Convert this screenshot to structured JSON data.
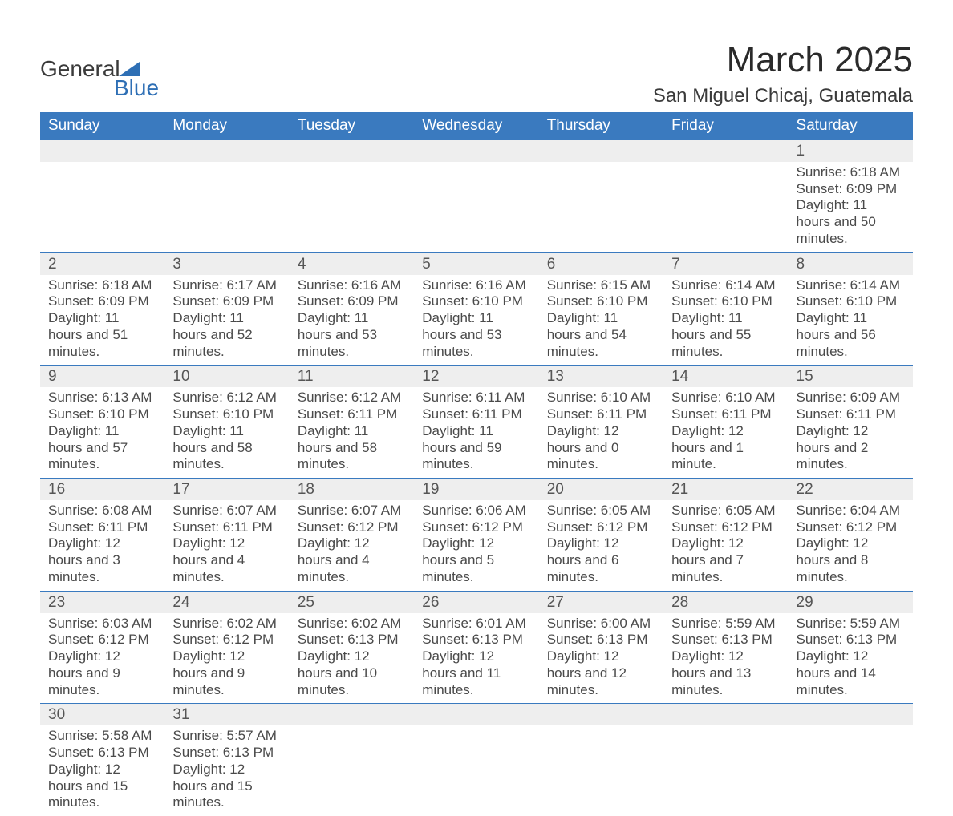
{
  "logo": {
    "text1": "General",
    "text2": "Blue"
  },
  "title": "March 2025",
  "subtitle": "San Miguel Chicaj, Guatemala",
  "weekdays": [
    "Sunday",
    "Monday",
    "Tuesday",
    "Wednesday",
    "Thursday",
    "Friday",
    "Saturday"
  ],
  "colors": {
    "header_bg": "#3a7abf",
    "header_text": "#ffffff",
    "daynum_bg": "#eeeeee",
    "row_divider": "#3a7abf",
    "body_text": "#4a4a4a",
    "logo_blue": "#2e6fb5"
  },
  "typography": {
    "title_fontsize": 44,
    "subtitle_fontsize": 24,
    "header_fontsize": 19,
    "body_fontsize": 17
  },
  "layout": {
    "columns": 7,
    "rows": 6,
    "start_day_index": 6
  },
  "weeks": [
    [
      null,
      null,
      null,
      null,
      null,
      null,
      {
        "n": 1,
        "sunrise": "6:18 AM",
        "sunset": "6:09 PM",
        "daylight": "11 hours and 50 minutes."
      }
    ],
    [
      {
        "n": 2,
        "sunrise": "6:18 AM",
        "sunset": "6:09 PM",
        "daylight": "11 hours and 51 minutes."
      },
      {
        "n": 3,
        "sunrise": "6:17 AM",
        "sunset": "6:09 PM",
        "daylight": "11 hours and 52 minutes."
      },
      {
        "n": 4,
        "sunrise": "6:16 AM",
        "sunset": "6:09 PM",
        "daylight": "11 hours and 53 minutes."
      },
      {
        "n": 5,
        "sunrise": "6:16 AM",
        "sunset": "6:10 PM",
        "daylight": "11 hours and 53 minutes."
      },
      {
        "n": 6,
        "sunrise": "6:15 AM",
        "sunset": "6:10 PM",
        "daylight": "11 hours and 54 minutes."
      },
      {
        "n": 7,
        "sunrise": "6:14 AM",
        "sunset": "6:10 PM",
        "daylight": "11 hours and 55 minutes."
      },
      {
        "n": 8,
        "sunrise": "6:14 AM",
        "sunset": "6:10 PM",
        "daylight": "11 hours and 56 minutes."
      }
    ],
    [
      {
        "n": 9,
        "sunrise": "6:13 AM",
        "sunset": "6:10 PM",
        "daylight": "11 hours and 57 minutes."
      },
      {
        "n": 10,
        "sunrise": "6:12 AM",
        "sunset": "6:10 PM",
        "daylight": "11 hours and 58 minutes."
      },
      {
        "n": 11,
        "sunrise": "6:12 AM",
        "sunset": "6:11 PM",
        "daylight": "11 hours and 58 minutes."
      },
      {
        "n": 12,
        "sunrise": "6:11 AM",
        "sunset": "6:11 PM",
        "daylight": "11 hours and 59 minutes."
      },
      {
        "n": 13,
        "sunrise": "6:10 AM",
        "sunset": "6:11 PM",
        "daylight": "12 hours and 0 minutes."
      },
      {
        "n": 14,
        "sunrise": "6:10 AM",
        "sunset": "6:11 PM",
        "daylight": "12 hours and 1 minute."
      },
      {
        "n": 15,
        "sunrise": "6:09 AM",
        "sunset": "6:11 PM",
        "daylight": "12 hours and 2 minutes."
      }
    ],
    [
      {
        "n": 16,
        "sunrise": "6:08 AM",
        "sunset": "6:11 PM",
        "daylight": "12 hours and 3 minutes."
      },
      {
        "n": 17,
        "sunrise": "6:07 AM",
        "sunset": "6:11 PM",
        "daylight": "12 hours and 4 minutes."
      },
      {
        "n": 18,
        "sunrise": "6:07 AM",
        "sunset": "6:12 PM",
        "daylight": "12 hours and 4 minutes."
      },
      {
        "n": 19,
        "sunrise": "6:06 AM",
        "sunset": "6:12 PM",
        "daylight": "12 hours and 5 minutes."
      },
      {
        "n": 20,
        "sunrise": "6:05 AM",
        "sunset": "6:12 PM",
        "daylight": "12 hours and 6 minutes."
      },
      {
        "n": 21,
        "sunrise": "6:05 AM",
        "sunset": "6:12 PM",
        "daylight": "12 hours and 7 minutes."
      },
      {
        "n": 22,
        "sunrise": "6:04 AM",
        "sunset": "6:12 PM",
        "daylight": "12 hours and 8 minutes."
      }
    ],
    [
      {
        "n": 23,
        "sunrise": "6:03 AM",
        "sunset": "6:12 PM",
        "daylight": "12 hours and 9 minutes."
      },
      {
        "n": 24,
        "sunrise": "6:02 AM",
        "sunset": "6:12 PM",
        "daylight": "12 hours and 9 minutes."
      },
      {
        "n": 25,
        "sunrise": "6:02 AM",
        "sunset": "6:13 PM",
        "daylight": "12 hours and 10 minutes."
      },
      {
        "n": 26,
        "sunrise": "6:01 AM",
        "sunset": "6:13 PM",
        "daylight": "12 hours and 11 minutes."
      },
      {
        "n": 27,
        "sunrise": "6:00 AM",
        "sunset": "6:13 PM",
        "daylight": "12 hours and 12 minutes."
      },
      {
        "n": 28,
        "sunrise": "5:59 AM",
        "sunset": "6:13 PM",
        "daylight": "12 hours and 13 minutes."
      },
      {
        "n": 29,
        "sunrise": "5:59 AM",
        "sunset": "6:13 PM",
        "daylight": "12 hours and 14 minutes."
      }
    ],
    [
      {
        "n": 30,
        "sunrise": "5:58 AM",
        "sunset": "6:13 PM",
        "daylight": "12 hours and 15 minutes."
      },
      {
        "n": 31,
        "sunrise": "5:57 AM",
        "sunset": "6:13 PM",
        "daylight": "12 hours and 15 minutes."
      },
      null,
      null,
      null,
      null,
      null
    ]
  ],
  "labels": {
    "sunrise": "Sunrise:",
    "sunset": "Sunset:",
    "daylight": "Daylight:"
  }
}
